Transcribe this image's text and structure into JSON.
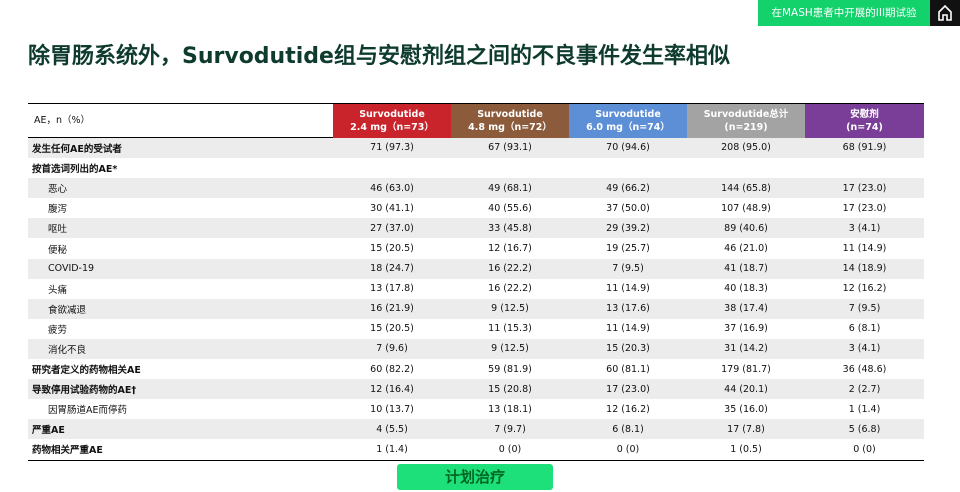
{
  "badge": "在MASH患者中开展的III期试验",
  "title": "除胃肠系统外，Survodutide组与安慰剂组之间的不良事件发生率相似",
  "table": {
    "header_label": "AE，n（%）",
    "columns": [
      {
        "line1": "Survodutide",
        "line2": "2.4 mg（n=73）",
        "color": "#c9232c"
      },
      {
        "line1": "Survodutide",
        "line2": "4.8 mg（n=72）",
        "color": "#8c5b3b"
      },
      {
        "line1": "Survodutide",
        "line2": "6.0 mg（n=74）",
        "color": "#5d8fd6"
      },
      {
        "line1": "Survodutide总计",
        "line2": "(n=219)",
        "color": "#a3a3a3"
      },
      {
        "line1": "安慰剂",
        "line2": "(n=74)",
        "color": "#7a3e99"
      }
    ],
    "rows": [
      {
        "label": "发生任何AE的受试者",
        "bold": true,
        "indent": 0,
        "cells": [
          "71 (97.3)",
          "67 (93.1)",
          "70 (94.6)",
          "208 (95.0)",
          "68 (91.9)"
        ]
      },
      {
        "label": "按首选词列出的AE*",
        "bold": true,
        "indent": 0,
        "cells": []
      },
      {
        "label": "恶心",
        "bold": false,
        "indent": 1,
        "cells": [
          "46 (63.0)",
          "49 (68.1)",
          "49 (66.2)",
          "144 (65.8)",
          "17 (23.0)"
        ]
      },
      {
        "label": "腹泻",
        "bold": false,
        "indent": 1,
        "cells": [
          "30 (41.1)",
          "40 (55.6)",
          "37 (50.0)",
          "107 (48.9)",
          "17 (23.0)"
        ]
      },
      {
        "label": "呕吐",
        "bold": false,
        "indent": 1,
        "cells": [
          "27 (37.0)",
          "33 (45.8)",
          "29 (39.2)",
          "89 (40.6)",
          "3 (4.1)"
        ]
      },
      {
        "label": "便秘",
        "bold": false,
        "indent": 1,
        "cells": [
          "15 (20.5)",
          "12 (16.7)",
          "19 (25.7)",
          "46 (21.0)",
          "11 (14.9)"
        ]
      },
      {
        "label": "COVID-19",
        "bold": false,
        "indent": 1,
        "cells": [
          "18 (24.7)",
          "16 (22.2)",
          "7 (9.5)",
          "41 (18.7)",
          "14 (18.9)"
        ]
      },
      {
        "label": "头痛",
        "bold": false,
        "indent": 1,
        "cells": [
          "13 (17.8)",
          "16 (22.2)",
          "11 (14.9)",
          "40 (18.3)",
          "12 (16.2)"
        ]
      },
      {
        "label": "食欲减退",
        "bold": false,
        "indent": 1,
        "cells": [
          "16 (21.9)",
          "9 (12.5)",
          "13 (17.6)",
          "38 (17.4)",
          "7 (9.5)"
        ]
      },
      {
        "label": "疲劳",
        "bold": false,
        "indent": 1,
        "cells": [
          "15 (20.5)",
          "11 (15.3)",
          "11 (14.9)",
          "37 (16.9)",
          "6 (8.1)"
        ]
      },
      {
        "label": "消化不良",
        "bold": false,
        "indent": 1,
        "cells": [
          "7 (9.6)",
          "9 (12.5)",
          "15 (20.3)",
          "31 (14.2)",
          "3 (4.1)"
        ]
      },
      {
        "label": "研究者定义的药物相关AE",
        "bold": true,
        "indent": 0,
        "cells": [
          "60 (82.2)",
          "59 (81.9)",
          "60 (81.1)",
          "179 (81.7)",
          "36 (48.6)"
        ]
      },
      {
        "label": "导致停用试验药物的AE†",
        "bold": true,
        "indent": 0,
        "cells": [
          "12 (16.4)",
          "15 (20.8)",
          "17 (23.0)",
          "44 (20.1)",
          "2 (2.7)"
        ]
      },
      {
        "label": "因胃肠道AE而停药",
        "bold": false,
        "indent": 1,
        "cells": [
          "10 (13.7)",
          "13 (18.1)",
          "12 (16.2)",
          "35 (16.0)",
          "1 (1.4)"
        ]
      },
      {
        "label": "严重AE",
        "bold": true,
        "indent": 0,
        "cells": [
          "4 (5.5)",
          "7 (9.7)",
          "6 (8.1)",
          "17 (7.8)",
          "5 (6.8)"
        ]
      },
      {
        "label": "药物相关严重AE",
        "bold": true,
        "indent": 0,
        "cells": [
          "1 (1.4)",
          "0 (0)",
          "0 (0)",
          "1 (0.5)",
          "0 (0)"
        ]
      }
    ]
  },
  "button": "计划治疗"
}
